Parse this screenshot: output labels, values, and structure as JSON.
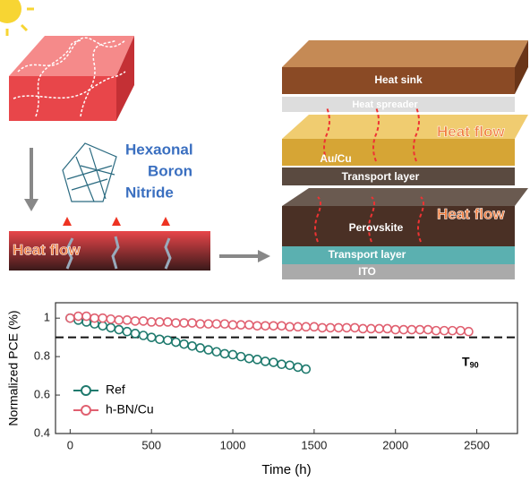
{
  "diagram": {
    "left": {
      "material_label": [
        "Hexaonal",
        "Boron",
        "Nitride"
      ],
      "heat_flow": "Heat flow"
    },
    "stack": {
      "layers": [
        "Heat sink",
        "Heat spreader",
        "Au/Cu",
        "Transport layer",
        "Perovskite",
        "Transport layer",
        "ITO"
      ],
      "heat_flow": [
        "Heat flow",
        "Heat flow"
      ]
    }
  },
  "chart_data": {
    "type": "scatter",
    "xlabel": "Time (h)",
    "ylabel": "Normalized PCE (%)",
    "xlim": [
      -90,
      2750
    ],
    "ylim": [
      0.4,
      1.08
    ],
    "xticks": [
      0,
      500,
      1000,
      1500,
      2000,
      2500
    ],
    "yticks": [
      0.4,
      0.6,
      0.8,
      1
    ],
    "legend": "lower left",
    "reference_line": {
      "value": 0.9,
      "label": "T",
      "label_sub": "90"
    },
    "series": [
      {
        "name": "Ref",
        "color": "#1f7a6e",
        "x": [
          0,
          50,
          100,
          150,
          200,
          250,
          300,
          350,
          400,
          450,
          500,
          550,
          600,
          650,
          700,
          750,
          800,
          850,
          900,
          950,
          1000,
          1050,
          1100,
          1150,
          1200,
          1250,
          1300,
          1350,
          1400,
          1450
        ],
        "values": [
          1.0,
          0.99,
          0.98,
          0.97,
          0.96,
          0.95,
          0.94,
          0.93,
          0.92,
          0.91,
          0.9,
          0.89,
          0.885,
          0.875,
          0.865,
          0.855,
          0.845,
          0.835,
          0.825,
          0.815,
          0.81,
          0.8,
          0.79,
          0.785,
          0.775,
          0.77,
          0.76,
          0.755,
          0.745,
          0.735
        ]
      },
      {
        "name": "h-BN/Cu",
        "color": "#e06070",
        "x": [
          0,
          50,
          100,
          150,
          200,
          250,
          300,
          350,
          400,
          450,
          500,
          550,
          600,
          650,
          700,
          750,
          800,
          850,
          900,
          950,
          1000,
          1050,
          1100,
          1150,
          1200,
          1250,
          1300,
          1350,
          1400,
          1450,
          1500,
          1550,
          1600,
          1650,
          1700,
          1750,
          1800,
          1850,
          1900,
          1950,
          2000,
          2050,
          2100,
          2150,
          2200,
          2250,
          2300,
          2350,
          2400,
          2450
        ],
        "values": [
          1.0,
          1.01,
          1.01,
          1.0,
          1.0,
          0.995,
          0.99,
          0.99,
          0.985,
          0.985,
          0.98,
          0.98,
          0.98,
          0.975,
          0.975,
          0.975,
          0.97,
          0.97,
          0.97,
          0.97,
          0.965,
          0.965,
          0.965,
          0.96,
          0.96,
          0.96,
          0.96,
          0.955,
          0.955,
          0.955,
          0.955,
          0.95,
          0.95,
          0.95,
          0.95,
          0.95,
          0.945,
          0.945,
          0.945,
          0.945,
          0.94,
          0.94,
          0.94,
          0.94,
          0.94,
          0.935,
          0.935,
          0.935,
          0.935,
          0.93
        ]
      }
    ]
  }
}
